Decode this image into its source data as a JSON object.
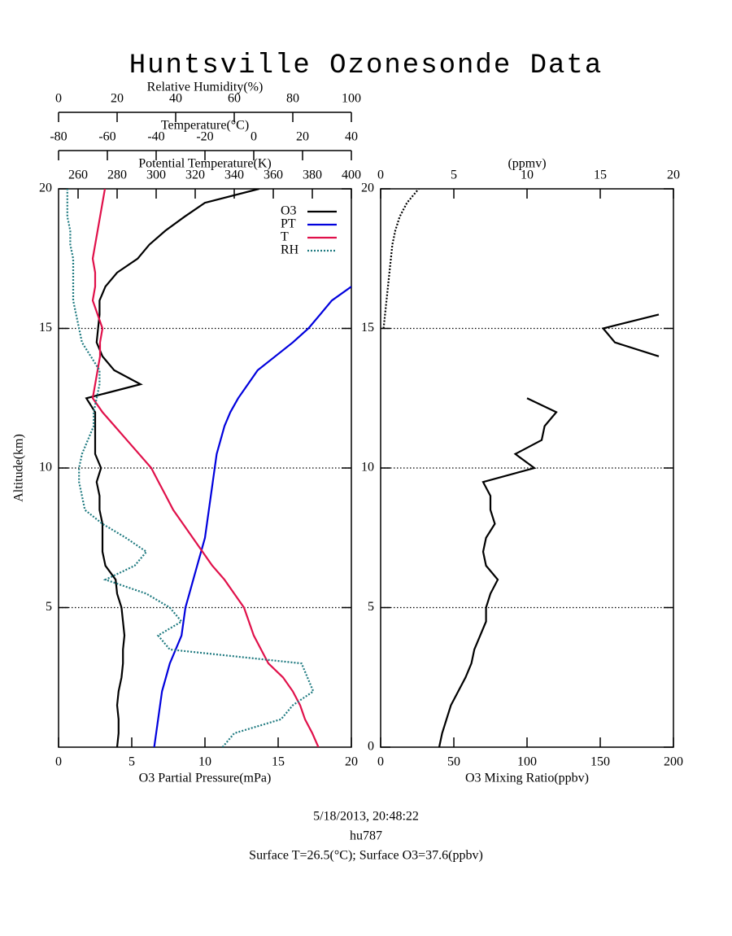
{
  "title": "Huntsville Ozonesonde Data",
  "footer": [
    "5/18/2013, 20:48:22",
    "hu787",
    "Surface T=26.5(°C); Surface O3=37.6(ppbv)"
  ],
  "chart_data": [
    {
      "type": "line",
      "ylabel": "Altitude(km)",
      "ylim": [
        0,
        20
      ],
      "yticks": [
        5,
        10,
        15,
        20
      ],
      "grid": true,
      "legend": "top-right",
      "y": [
        0,
        0.5,
        1,
        1.5,
        2,
        2.5,
        3,
        3.5,
        4,
        4.5,
        5,
        5.5,
        6,
        6.5,
        7,
        7.5,
        8,
        8.5,
        9,
        9.5,
        10,
        10.5,
        11,
        11.5,
        12,
        12.5,
        13,
        13.5,
        14,
        14.5,
        15,
        15.5,
        16,
        16.5,
        17,
        17.5,
        18,
        18.5,
        19,
        19.5,
        20
      ],
      "axes": [
        {
          "position": "bottom",
          "label": "O3 Partial Pressure(mPa)",
          "lim": [
            0,
            20
          ],
          "ticks": [
            0,
            5,
            10,
            15,
            20
          ]
        },
        {
          "position": "top",
          "label": "Potential Temperature(K)",
          "lim": [
            250,
            400
          ],
          "ticks": [
            260,
            280,
            300,
            320,
            340,
            360,
            380,
            400
          ]
        },
        {
          "position": "top",
          "label": "Temperature(°C)",
          "lim": [
            -80,
            40
          ],
          "ticks": [
            -80,
            -60,
            -40,
            -20,
            0,
            20,
            40
          ]
        },
        {
          "position": "top",
          "label": "Relative Humidity(%)",
          "lim": [
            0,
            100
          ],
          "ticks": [
            0,
            20,
            40,
            60,
            80,
            100
          ]
        }
      ],
      "series": [
        {
          "name": "O3",
          "color": "#000000",
          "axis": 0,
          "style": "solid",
          "values": [
            4.0,
            4.1,
            4.1,
            4.0,
            4.1,
            4.3,
            4.4,
            4.4,
            4.5,
            4.4,
            4.3,
            4.0,
            3.9,
            3.2,
            3.0,
            3.0,
            3.0,
            2.8,
            2.8,
            2.6,
            2.9,
            2.5,
            2.5,
            2.5,
            2.5,
            1.9,
            5.6,
            3.8,
            3.0,
            2.6,
            2.7,
            2.8,
            2.8,
            3.2,
            4.0,
            5.4,
            6.2,
            7.3,
            8.6,
            10.0,
            13.7
          ]
        },
        {
          "name": "PT",
          "color": "#0000dd",
          "axis": 1,
          "style": "solid",
          "values": [
            299,
            300,
            301,
            302,
            303,
            305,
            307,
            310,
            313,
            314,
            315,
            317,
            319,
            321,
            323,
            325,
            326,
            327,
            328,
            329,
            330,
            331,
            333,
            335,
            338,
            342,
            347,
            352,
            361,
            370,
            378,
            384,
            390,
            400,
            null,
            null,
            null,
            null,
            null,
            null,
            null
          ]
        },
        {
          "name": "T",
          "color": "#e0104a",
          "axis": 2,
          "style": "solid",
          "values": [
            26.5,
            24,
            21,
            19,
            16,
            12,
            6,
            3,
            0,
            -2,
            -4,
            -8,
            -12,
            -17,
            -21,
            -25,
            -29,
            -33,
            -36,
            -39,
            -42,
            -47,
            -52,
            -57,
            -62,
            -66,
            -65,
            -64,
            -63,
            -63,
            -62,
            -64,
            -66,
            -65,
            -65,
            -66,
            -65,
            -64,
            -63,
            -62,
            -61
          ]
        },
        {
          "name": "RH",
          "color": "#1f7a80",
          "axis": 3,
          "style": "dotted",
          "values": [
            56,
            60,
            76,
            80,
            87,
            85,
            83,
            38,
            34,
            42,
            38,
            30,
            16,
            26,
            30,
            23,
            15,
            9,
            8,
            7,
            7,
            8,
            10,
            12,
            12,
            13,
            14,
            14,
            11,
            8,
            7,
            6,
            5,
            5,
            5,
            5,
            4,
            4,
            3,
            3,
            3
          ]
        }
      ]
    },
    {
      "type": "line",
      "ylim": [
        0,
        20
      ],
      "yticks": [
        0,
        5,
        10,
        15,
        20
      ],
      "grid": true,
      "y": [
        0,
        0.5,
        1,
        1.5,
        2,
        2.5,
        3,
        3.5,
        4,
        4.5,
        5,
        5.5,
        6,
        6.5,
        7,
        7.5,
        8,
        8.5,
        9,
        9.5,
        10,
        10.5,
        11,
        11.5,
        12,
        12.5,
        13,
        13.5,
        14,
        14.5,
        15,
        15.5,
        16,
        16.5,
        17,
        17.5,
        18,
        18.5,
        19,
        19.5,
        20
      ],
      "axes": [
        {
          "position": "bottom",
          "label": "O3 Mixing Ratio(ppbv)",
          "lim": [
            0,
            200
          ],
          "ticks": [
            0,
            50,
            100,
            150,
            200
          ]
        },
        {
          "position": "top",
          "label": "(ppmv)",
          "lim": [
            0,
            20
          ],
          "ticks": [
            0,
            5,
            10,
            15,
            20
          ]
        }
      ],
      "series": [
        {
          "color": "#000000",
          "axis": 0,
          "style": "solid",
          "values": [
            40,
            42,
            45,
            48,
            53,
            58,
            62,
            64,
            68,
            72,
            72,
            75,
            80,
            72,
            70,
            72,
            78,
            75,
            75,
            70,
            105,
            92,
            110,
            112,
            120,
            100,
            null,
            null,
            190,
            160,
            152,
            190,
            null,
            null,
            null,
            null,
            null,
            null,
            null,
            null,
            null
          ]
        },
        {
          "color": "#000000",
          "axis": 1,
          "style": "dotted",
          "values": [
            null,
            null,
            null,
            null,
            null,
            null,
            null,
            null,
            null,
            null,
            null,
            null,
            null,
            null,
            null,
            null,
            null,
            null,
            null,
            null,
            null,
            null,
            null,
            null,
            null,
            null,
            null,
            null,
            null,
            null,
            0.2,
            0.3,
            0.4,
            0.5,
            0.6,
            0.7,
            0.8,
            1.0,
            1.3,
            1.8,
            2.6
          ]
        }
      ]
    }
  ]
}
